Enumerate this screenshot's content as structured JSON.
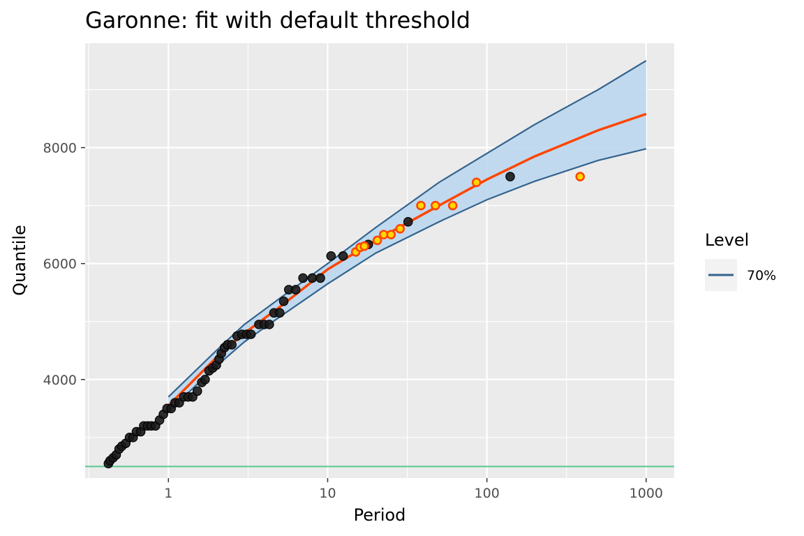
{
  "chart_data": {
    "type": "scatter",
    "title": "Garonne: fit with default threshold",
    "xlabel": "Period",
    "ylabel": "Quantile",
    "x_scale": "log10",
    "xlim": [
      0.3,
      1500
    ],
    "ylim": [
      2300,
      9800
    ],
    "x_ticks": [
      1,
      10,
      100,
      1000
    ],
    "x_tick_labels": [
      "1",
      "10",
      "100",
      "1000"
    ],
    "y_ticks": [
      4000,
      6000,
      8000
    ],
    "y_tick_labels": [
      "4000",
      "6000",
      "8000"
    ],
    "grid": true,
    "legend": {
      "title": "Level",
      "position": "right",
      "entries": [
        {
          "label": "70%",
          "color": "#33638d",
          "fill": "#bdd7ee"
        }
      ]
    },
    "colors": {
      "panel": "#ebebeb",
      "grid": "#ffffff",
      "band_fill": "#bdd7ee",
      "band_line": "#33638d",
      "fit_line": "#ff4500",
      "threshold_line": "#66cc99",
      "points": "#1a1a1a",
      "hist_points_fill": "#ffd700",
      "hist_points_edge": "#ff4500"
    },
    "threshold": 2500,
    "fit_curve": {
      "x": [
        1,
        2,
        3,
        5,
        10,
        20,
        50,
        100,
        200,
        500,
        1000
      ],
      "y": [
        3550,
        4380,
        4800,
        5250,
        5900,
        6400,
        7000,
        7450,
        7850,
        8300,
        8580
      ]
    },
    "band_upper": {
      "x": [
        1,
        2,
        3,
        5,
        10,
        20,
        50,
        100,
        200,
        500,
        1000
      ],
      "y": [
        3700,
        4500,
        4950,
        5400,
        6000,
        6620,
        7400,
        7900,
        8400,
        9000,
        9500
      ]
    },
    "band_lower": {
      "x": [
        1,
        2,
        3,
        5,
        10,
        20,
        50,
        100,
        200,
        500,
        1000
      ],
      "y": [
        3450,
        4230,
        4650,
        5080,
        5650,
        6180,
        6720,
        7100,
        7420,
        7780,
        7980
      ]
    },
    "points": {
      "x": [
        0.42,
        0.43,
        0.45,
        0.47,
        0.49,
        0.51,
        0.54,
        0.57,
        0.6,
        0.63,
        0.67,
        0.7,
        0.74,
        0.78,
        0.83,
        0.88,
        0.93,
        0.98,
        1.04,
        1.1,
        1.17,
        1.25,
        1.33,
        1.42,
        1.52,
        1.62,
        1.7,
        1.8,
        1.9,
        2.0,
        2.08,
        2.15,
        2.25,
        2.35,
        2.5,
        2.7,
        2.9,
        3.1,
        3.3,
        3.7,
        4.0,
        4.3,
        4.6,
        5.0,
        5.3,
        5.7,
        6.3,
        7.0,
        8.0,
        9.0,
        10.5,
        12.5,
        18.0,
        32.0,
        140.0
      ],
      "y": [
        2550,
        2600,
        2650,
        2700,
        2800,
        2850,
        2900,
        3000,
        3000,
        3100,
        3100,
        3200,
        3200,
        3200,
        3200,
        3300,
        3400,
        3500,
        3500,
        3600,
        3600,
        3700,
        3700,
        3700,
        3800,
        3950,
        4000,
        4150,
        4200,
        4250,
        4350,
        4450,
        4550,
        4600,
        4600,
        4750,
        4780,
        4780,
        4780,
        4950,
        4950,
        4950,
        5150,
        5150,
        5350,
        5550,
        5550,
        5750,
        5750,
        5750,
        6130,
        6130,
        6330,
        6720,
        7500
      ]
    },
    "historical_points": {
      "x": [
        15.0,
        16.0,
        17.0,
        20.5,
        22.5,
        25.0,
        28.5,
        38.5,
        47.5,
        61.0,
        86.0,
        385.0
      ],
      "y": [
        6200,
        6280,
        6300,
        6400,
        6500,
        6500,
        6600,
        7000,
        7000,
        7000,
        7400,
        7500
      ]
    }
  }
}
